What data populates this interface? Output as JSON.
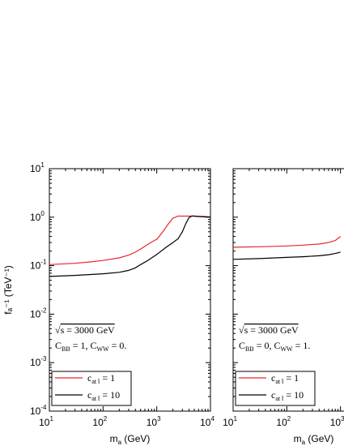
{
  "chart_data": [
    {
      "type": "line",
      "xlabel_main": "m",
      "xlabel_sub": "a",
      "xlabel_unit": " (GeV)",
      "ylabel": "fₐ⁻¹ (TeV⁻¹)",
      "x_scale": "log",
      "y_scale": "log",
      "xlim": [
        10,
        10000
      ],
      "ylim": [
        0.0001,
        10
      ],
      "x_ticks": [
        {
          "base": "10",
          "exp": "1"
        },
        {
          "base": "10",
          "exp": "2"
        },
        {
          "base": "10",
          "exp": "3"
        },
        {
          "base": "10",
          "exp": "4"
        }
      ],
      "y_ticks": [
        {
          "base": "10",
          "exp": "1"
        },
        {
          "base": "10",
          "exp": "0"
        },
        {
          "base": "10",
          "exp": "-1"
        },
        {
          "base": "10",
          "exp": "-2"
        },
        {
          "base": "10",
          "exp": "-3"
        },
        {
          "base": "10",
          "exp": "-4"
        }
      ],
      "annotation_sqrt": "√",
      "annotation_energy": "s = 3000  GeV",
      "annotation_couplings": "C",
      "coupling_bb_sub": "BB",
      "coupling_bb_val": " = 1,  C",
      "coupling_ww_sub": "WW",
      "coupling_ww_val": " = 0.",
      "legend": [
        {
          "main": "c",
          "sub": "at  t̄",
          "value": " = 1",
          "color": "#e8262b"
        },
        {
          "main": "c",
          "sub": "at  t̄",
          "value": " = 10",
          "color": "#000000"
        }
      ],
      "series": [
        {
          "color": "#e8262b",
          "x": [
            10,
            30,
            60,
            100,
            200,
            300,
            400,
            500,
            700,
            900,
            1000,
            1300,
            1600,
            2000,
            2500,
            3000,
            5000,
            10000
          ],
          "y": [
            0.105,
            0.112,
            0.12,
            0.128,
            0.145,
            0.165,
            0.19,
            0.22,
            0.28,
            0.33,
            0.35,
            0.5,
            0.7,
            0.95,
            1.05,
            1.05,
            1.05,
            1.02
          ]
        },
        {
          "color": "#000000",
          "x": [
            10,
            30,
            100,
            200,
            300,
            400,
            500,
            700,
            1000,
            1500,
            2000,
            2500,
            3000,
            3500,
            4000,
            4500,
            5000,
            6000,
            10000
          ],
          "y": [
            0.06,
            0.063,
            0.068,
            0.073,
            0.08,
            0.09,
            0.105,
            0.13,
            0.17,
            0.24,
            0.3,
            0.36,
            0.5,
            0.75,
            0.98,
            1.06,
            1.05,
            1.03,
            1.0
          ]
        }
      ]
    },
    {
      "type": "line",
      "xlabel_main": "m",
      "xlabel_sub": "a",
      "xlabel_unit": " (GeV)",
      "x_scale": "log",
      "y_scale": "log",
      "xlim": [
        10,
        10000
      ],
      "ylim": [
        0.0001,
        10
      ],
      "x_ticks": [
        {
          "base": "10",
          "exp": "1"
        },
        {
          "base": "10",
          "exp": "2"
        },
        {
          "base": "10",
          "exp": "3"
        }
      ],
      "annotation_sqrt": "√",
      "annotation_energy": "s = 3000  GeV",
      "annotation_couplings": "C",
      "coupling_bb_sub": "BB",
      "coupling_bb_val": " = 0,  C",
      "coupling_ww_sub": "WW",
      "coupling_ww_val": " = 1.",
      "legend": [
        {
          "main": "c",
          "sub": "at  t̄",
          "value": " = 1",
          "color": "#e8262b"
        },
        {
          "main": "c",
          "sub": "at  t̄",
          "value": " = 10",
          "color": "#000000"
        }
      ],
      "series": [
        {
          "color": "#e8262b",
          "x": [
            10,
            30,
            100,
            200,
            400,
            600,
            800,
            1000
          ],
          "y": [
            0.24,
            0.245,
            0.255,
            0.265,
            0.28,
            0.3,
            0.33,
            0.4
          ]
        },
        {
          "color": "#000000",
          "x": [
            10,
            30,
            100,
            200,
            400,
            600,
            800,
            1000
          ],
          "y": [
            0.135,
            0.14,
            0.148,
            0.153,
            0.16,
            0.168,
            0.178,
            0.19
          ]
        }
      ]
    }
  ]
}
